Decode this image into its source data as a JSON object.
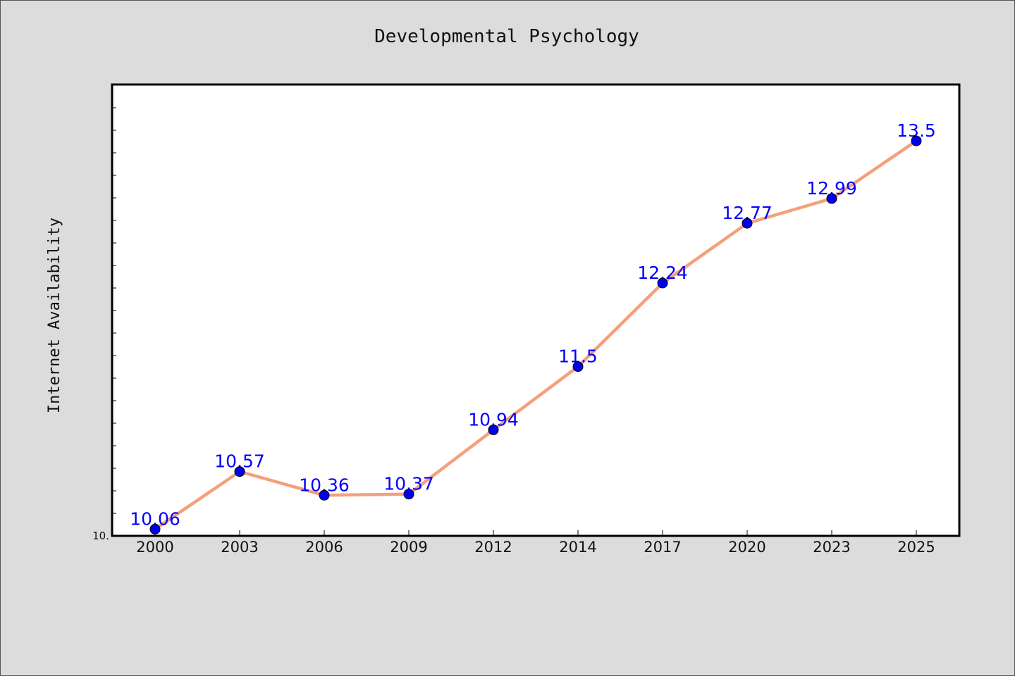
{
  "chart_data": {
    "type": "line",
    "title": "Developmental Psychology",
    "xlabel": "",
    "ylabel": "Internet Availability",
    "categories": [
      "2000",
      "2003",
      "2006",
      "2009",
      "2012",
      "2014",
      "2017",
      "2020",
      "2023",
      "2025"
    ],
    "series": [
      {
        "values": [
          10.06,
          10.57,
          10.36,
          10.37,
          10.94,
          11.5,
          12.24,
          12.77,
          12.99,
          13.5
        ]
      }
    ],
    "data_labels": [
      "10.06",
      "10.57",
      "10.36",
      "10.37",
      "10.94",
      "11.5",
      "12.24",
      "12.77",
      "12.99",
      "13.5"
    ],
    "ylim": [
      10.0,
      14.0
    ],
    "y_tick_labels": [
      "10."
    ],
    "grid": false,
    "legend": "none",
    "colors": {
      "line": "#f4a07c",
      "marker": "#0000ee",
      "label": "#0000ff",
      "plot_bg": "#ffffff",
      "page_bg": "#dcdcdc"
    }
  }
}
